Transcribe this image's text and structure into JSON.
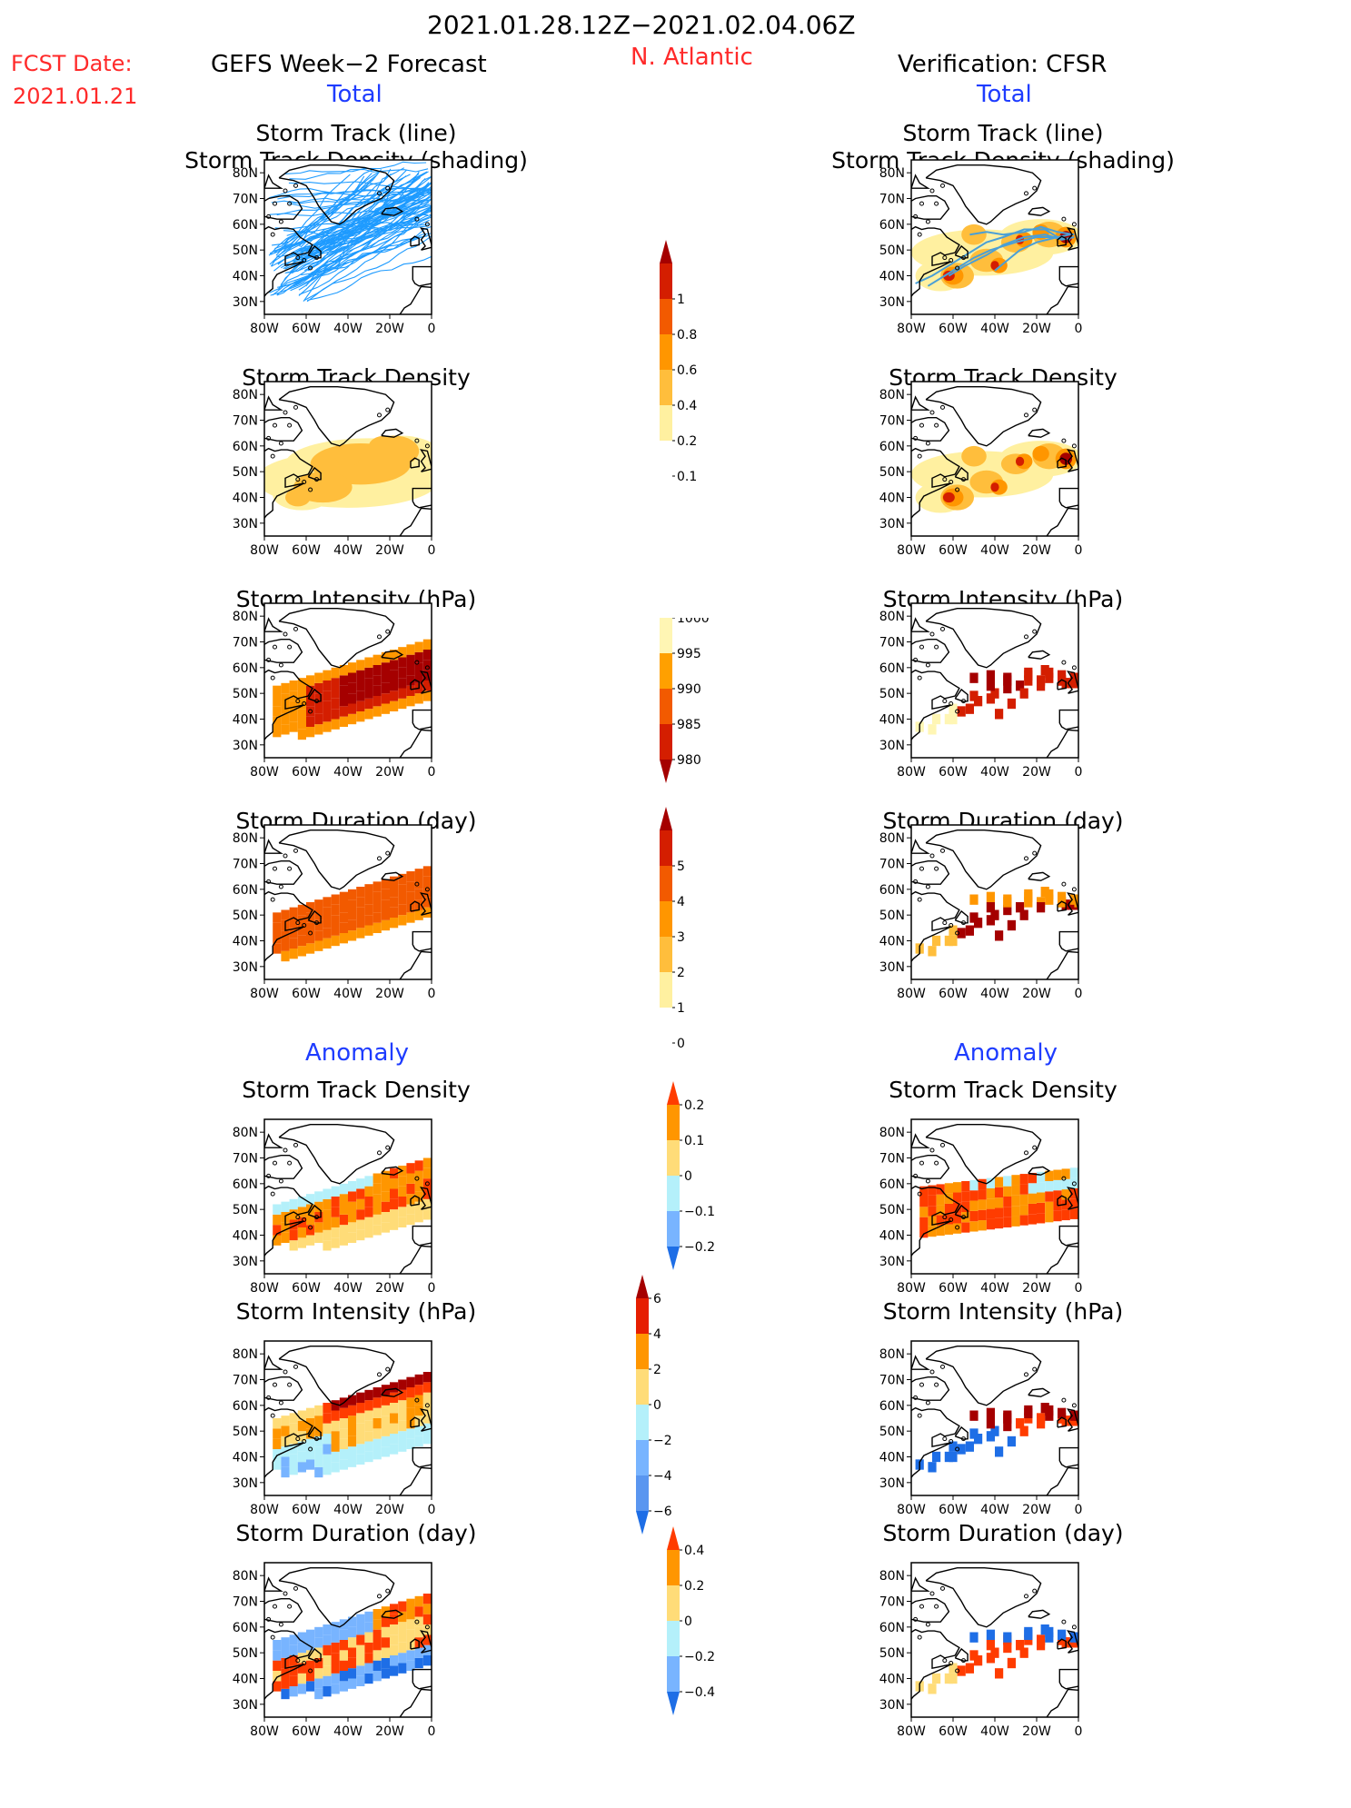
{
  "header": {
    "period": "2021.01.28.12Z−2021.02.04.06Z",
    "fcst_label": "FCST Date:",
    "fcst_date": "2021.01.21",
    "left_title": "GEFS Week−2 Forecast",
    "region": "N. Atlantic",
    "right_title": "Verification: CFSR"
  },
  "sections": {
    "total": "Total",
    "anomaly": "Anomaly"
  },
  "panel_titles": {
    "track": [
      "Storm Track (line)",
      "Storm Track Density (shading)"
    ],
    "density": "Storm Track Density",
    "intensity": "Storm Intensity (hPa)",
    "duration": "Storm Duration (day)"
  },
  "axes": {
    "lat_labels": [
      "80N",
      "70N",
      "60N",
      "50N",
      "40N",
      "30N"
    ],
    "lon_labels": [
      "80W",
      "60W",
      "40W",
      "20W",
      "0"
    ]
  },
  "colorbars": {
    "density_total": {
      "labels": [
        "1",
        "0.8",
        "0.6",
        "0.4",
        "0.2",
        "0.1"
      ],
      "colors": [
        "#a50000",
        "#d41e00",
        "#f25a00",
        "#ff9600",
        "#ffbe3c",
        "#fff0a0"
      ]
    },
    "intensity_total": {
      "labels": [
        "1000",
        "995",
        "990",
        "985",
        "980"
      ],
      "colors": [
        "#fff6b4",
        "#ffa000",
        "#f25a00",
        "#d41e00",
        "#a50000"
      ]
    },
    "duration_total": {
      "labels": [
        "5",
        "4",
        "3",
        "2",
        "1",
        "0"
      ],
      "colors": [
        "#a50000",
        "#d41e00",
        "#f25a00",
        "#ff9600",
        "#ffbe3c",
        "#fff0a0"
      ]
    },
    "density_anom": {
      "labels": [
        "0.2",
        "0.1",
        "0",
        "−0.1",
        "−0.2"
      ],
      "colors": [
        "#ff3c00",
        "#ff9600",
        "#ffdc78",
        "#b4f0fa",
        "#78b4ff",
        "#1e6ee6"
      ]
    },
    "intensity_anom": {
      "labels": [
        "6",
        "4",
        "2",
        "0",
        "−2",
        "−4",
        "−6"
      ],
      "colors": [
        "#a50000",
        "#e61e00",
        "#ff9600",
        "#ffdc78",
        "#b4f0fa",
        "#78b4ff",
        "#5a96f0",
        "#1e6ee6"
      ]
    },
    "duration_anom": {
      "labels": [
        "0.4",
        "0.2",
        "0",
        "−0.2",
        "−0.4"
      ],
      "colors": [
        "#ff3c00",
        "#ff9600",
        "#ffdc78",
        "#b4f0fa",
        "#78b4ff",
        "#1e6ee6"
      ]
    }
  }
}
